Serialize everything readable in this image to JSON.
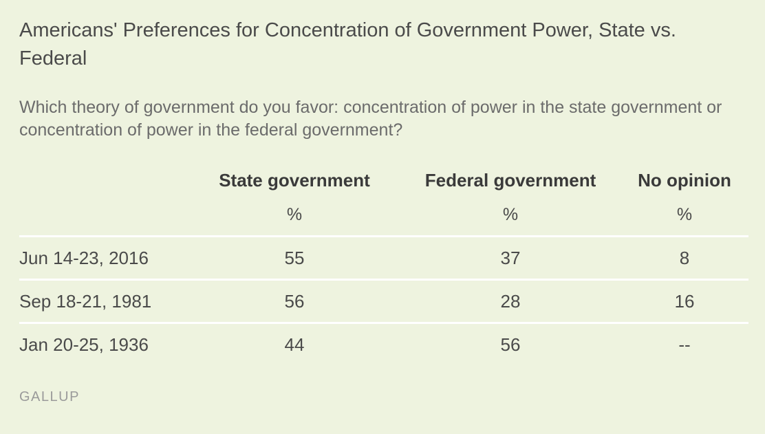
{
  "chart_data": {
    "type": "table",
    "title": "Americans' Preferences for Concentration of Government Power, State vs. Federal",
    "subtitle": "Which theory of government do you favor: concentration of power in the state government or concentration of power in the federal government?",
    "columns": [
      "State government",
      "Federal government",
      "No opinion"
    ],
    "units": [
      "%",
      "%",
      "%"
    ],
    "rows": [
      {
        "label": "Jun 14-23, 2016",
        "values": [
          "55",
          "37",
          "8"
        ]
      },
      {
        "label": "Sep 18-21, 1981",
        "values": [
          "56",
          "28",
          "16"
        ]
      },
      {
        "label": "Jan 20-25, 1936",
        "values": [
          "44",
          "56",
          "--"
        ]
      }
    ],
    "source": "GALLUP"
  },
  "colors": {
    "background": "#eef3df",
    "row_divider": "#ffffff",
    "source_text": "#9a9a9a"
  }
}
